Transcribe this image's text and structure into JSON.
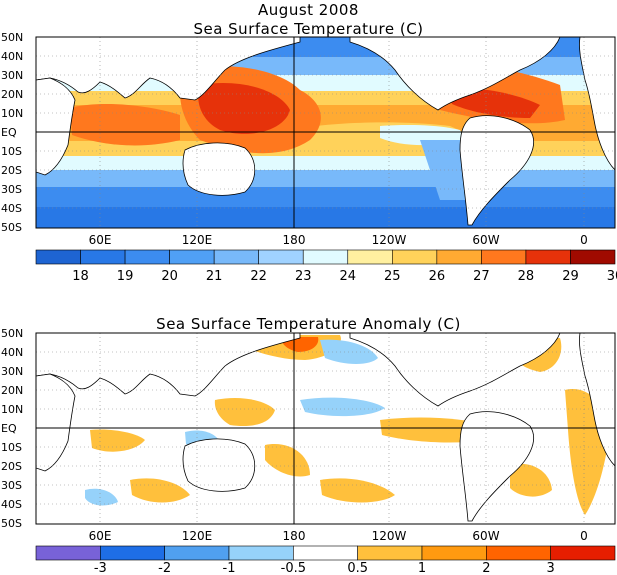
{
  "titles": {
    "top_line1": "August 2008",
    "top_line2": "Sea Surface Temperature (C)",
    "bottom": "Sea Surface Temperature Anomaly (C)"
  },
  "lat_labels": [
    "50N",
    "40N",
    "30N",
    "20N",
    "10N",
    "EQ",
    "10S",
    "20S",
    "30S",
    "40S",
    "50S"
  ],
  "lon_labels": [
    "60E",
    "120E",
    "180",
    "120W",
    "60W",
    "0"
  ],
  "sst_colorbar": {
    "colors": [
      "#1e64d2",
      "#2878e6",
      "#3c8cf0",
      "#50a0f5",
      "#78b9fa",
      "#a0d2ff",
      "#e1fbff",
      "#fff0a0",
      "#ffd25a",
      "#ffaa32",
      "#ff781e",
      "#e6320a",
      "#a00a00"
    ],
    "labels": [
      "18",
      "19",
      "20",
      "21",
      "22",
      "23",
      "24",
      "25",
      "26",
      "27",
      "28",
      "29",
      "30"
    ]
  },
  "anom_colorbar": {
    "colors": [
      "#7862d8",
      "#1e6ee6",
      "#50a0f0",
      "#96d2fa",
      "#ffffff",
      "#ffc03c",
      "#ff9a10",
      "#ff6400",
      "#e61e00"
    ],
    "labels": [
      "-3",
      "-2",
      "-1",
      "-0.5",
      "0.5",
      "1",
      "2",
      "3"
    ]
  },
  "palette": {
    "land": "#ffffff",
    "coast": "#000000",
    "grid": "#888888"
  }
}
